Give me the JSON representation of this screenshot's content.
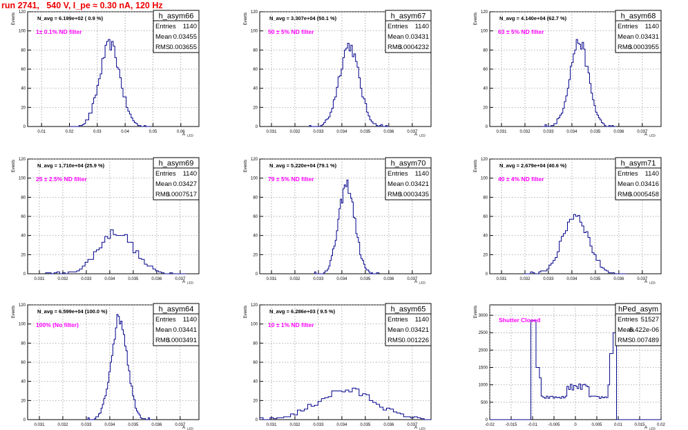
{
  "header": {
    "title": "run 2741,   540 V, I_pe ≈ 0.30 nA, 120 Hz"
  },
  "colors": {
    "histogram": "#00008b",
    "annotation": "#ff00ff",
    "title": "#ee0000",
    "grid": "#888888"
  },
  "axis_labels": {
    "y": "Events",
    "x": "A",
    "x_sub": "LED"
  },
  "stats_labels": {
    "entries": "Entries",
    "mean": "Mean",
    "rms": "RMS"
  },
  "chart_data": [
    {
      "type": "histogram",
      "name": "h_asym66",
      "stats": {
        "entries": "1140",
        "mean": "0.03455",
        "rms": "0.003655"
      },
      "navg": "N_avg = 6.199e+02 ( 0.9 %)",
      "annotation": "1± 0.1% ND filter",
      "xlim": [
        0.005,
        0.0665
      ],
      "ylim": [
        0,
        120
      ],
      "xticks": [
        "0.01",
        "0.02",
        "0.03",
        "0.04",
        "0.05",
        "0.06"
      ],
      "yticks": [
        "0",
        "20",
        "40",
        "60",
        "80",
        "100",
        "120"
      ],
      "mean": 0.03455,
      "sigma": 0.003655,
      "peak": 86,
      "bins": 50,
      "grid": true
    },
    {
      "type": "histogram",
      "name": "h_asym67",
      "stats": {
        "entries": "1140",
        "mean": "0.03431",
        "rms": "0.0004232"
      },
      "navg": "N_avg = 3.307e+04 (50.1 %)",
      "annotation": "50 ± 5% ND filter",
      "xlim": [
        0.0305,
        0.0378
      ],
      "ylim": [
        0,
        120
      ],
      "xticks": [
        "0.031",
        "0.032",
        "0.033",
        "0.034",
        "0.035",
        "0.036",
        "0.037"
      ],
      "yticks": [
        "0",
        "20",
        "40",
        "60",
        "80",
        "100",
        "120"
      ],
      "mean": 0.03431,
      "sigma": 0.0004232,
      "peak": 85,
      "bins": 50,
      "grid": true
    },
    {
      "type": "histogram",
      "name": "h_asym68",
      "stats": {
        "entries": "1140",
        "mean": "0.03431",
        "rms": "0.0003955"
      },
      "navg": "N_avg = 4.140e+04 (62.7 %)",
      "annotation": "63 ± 5% ND filter",
      "xlim": [
        0.0305,
        0.0378
      ],
      "ylim": [
        0,
        120
      ],
      "xticks": [
        "0.031",
        "0.032",
        "0.033",
        "0.034",
        "0.035",
        "0.036",
        "0.037"
      ],
      "yticks": [
        "0",
        "20",
        "40",
        "60",
        "80",
        "100",
        "120"
      ],
      "mean": 0.03431,
      "sigma": 0.0003955,
      "peak": 89,
      "bins": 50,
      "grid": true
    },
    {
      "type": "histogram",
      "name": "h_asym69",
      "stats": {
        "entries": "1140",
        "mean": "0.03427",
        "rms": "0.0007517"
      },
      "navg": "N_avg = 1.710e+04 (25.9 %)",
      "annotation": "25 ± 2.5% ND filter",
      "xlim": [
        0.0305,
        0.0378
      ],
      "ylim": [
        0,
        120
      ],
      "xticks": [
        "0.031",
        "0.032",
        "0.033",
        "0.034",
        "0.035",
        "0.036",
        "0.037"
      ],
      "yticks": [
        "0",
        "20",
        "40",
        "60",
        "80",
        "100",
        "120"
      ],
      "mean": 0.03427,
      "sigma": 0.0007517,
      "peak": 44,
      "bins": 50,
      "grid": true
    },
    {
      "type": "histogram",
      "name": "h_asym70",
      "stats": {
        "entries": "1140",
        "mean": "0.03421",
        "rms": "0.0003435"
      },
      "navg": "N_avg = 5.220e+04 (79.1 %)",
      "annotation": "79 ± 5% ND filter",
      "xlim": [
        0.0305,
        0.0378
      ],
      "ylim": [
        0,
        120
      ],
      "xticks": [
        "0.031",
        "0.032",
        "0.033",
        "0.034",
        "0.035",
        "0.036",
        "0.037"
      ],
      "yticks": [
        "0",
        "20",
        "40",
        "60",
        "80",
        "100",
        "120"
      ],
      "mean": 0.03421,
      "sigma": 0.0003435,
      "peak": 93,
      "bins": 50,
      "grid": true
    },
    {
      "type": "histogram",
      "name": "h_asym71",
      "stats": {
        "entries": "1140",
        "mean": "0.03416",
        "rms": "0.0005458"
      },
      "navg": "N_avg = 2.679e+04 (40.6 %)",
      "annotation": "40 ± 4% ND filter",
      "xlim": [
        0.0305,
        0.0378
      ],
      "ylim": [
        0,
        120
      ],
      "xticks": [
        "0.031",
        "0.032",
        "0.033",
        "0.034",
        "0.035",
        "0.036",
        "0.037"
      ],
      "yticks": [
        "0",
        "20",
        "40",
        "60",
        "80",
        "100",
        "120"
      ],
      "mean": 0.03416,
      "sigma": 0.0005458,
      "peak": 62,
      "bins": 50,
      "grid": true
    },
    {
      "type": "histogram",
      "name": "h_asym64",
      "stats": {
        "entries": "1140",
        "mean": "0.03441",
        "rms": "0.0003491"
      },
      "navg": "N_avg = 6.599e+04 (100.0 %)",
      "annotation": "100% (No filter)",
      "xlim": [
        0.0305,
        0.0378
      ],
      "ylim": [
        0,
        120
      ],
      "xticks": [
        "0.031",
        "0.032",
        "0.033",
        "0.034",
        "0.035",
        "0.036",
        "0.037"
      ],
      "yticks": [
        "0",
        "20",
        "40",
        "60",
        "80",
        "100",
        "120"
      ],
      "mean": 0.03441,
      "sigma": 0.0003491,
      "peak": 106,
      "bins": 50,
      "grid": true
    },
    {
      "type": "histogram",
      "name": "h_asym65",
      "stats": {
        "entries": "1140",
        "mean": "0.03421",
        "rms": "0.001226"
      },
      "navg": "N_avg = 6.286e+03 ( 9.5 %)",
      "annotation": "10 ± 1% ND filter",
      "xlim": [
        0.0305,
        0.0378
      ],
      "ylim": [
        0,
        120
      ],
      "xticks": [
        "0.031",
        "0.032",
        "0.033",
        "0.034",
        "0.035",
        "0.036",
        "0.037"
      ],
      "yticks": [
        "0",
        "20",
        "40",
        "60",
        "80",
        "100",
        "120"
      ],
      "mean": 0.03421,
      "sigma": 0.001226,
      "peak": 31,
      "bins": 50,
      "grid": true
    },
    {
      "type": "histogram",
      "name": "hPed_asym",
      "stats": {
        "entries": "51527",
        "mean": "-5.422e-06",
        "rms": "0.007489"
      },
      "annotation": "Shutter Closed",
      "xlim": [
        -0.02,
        0.02
      ],
      "ylim": [
        0,
        3300
      ],
      "xticks": [
        "-0.02",
        "-0.015",
        "-0.01",
        "-0.005",
        "0",
        "0.005",
        "0.01",
        "0.015",
        "0.02"
      ],
      "yticks": [
        "0",
        "500",
        "1000",
        "1500",
        "2000",
        "2500",
        "3000"
      ],
      "mean": -5.422e-06,
      "sigma": 0.007489,
      "bins": 100,
      "grid": true
    }
  ]
}
